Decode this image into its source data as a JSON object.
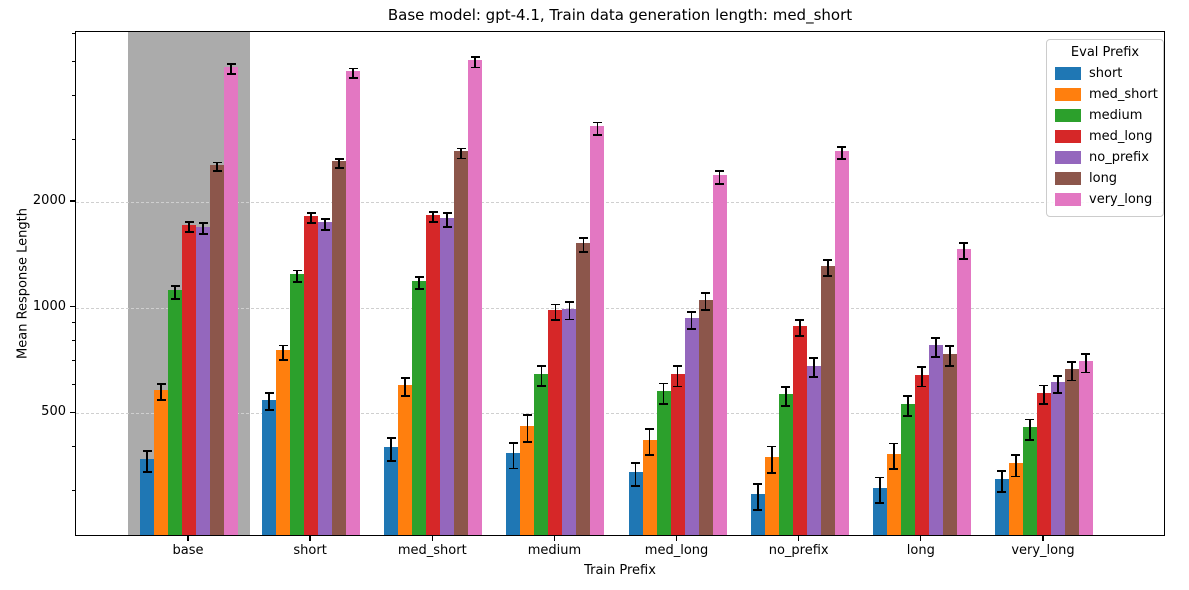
{
  "chart_data": {
    "type": "bar",
    "title": "Base model: gpt-4.1, Train data generation length: med_short",
    "xlabel": "Train Prefix",
    "ylabel": "Mean Response Length",
    "legend_title": "Eval Prefix",
    "y_scale": "log",
    "ylim": [
      222,
      6100
    ],
    "yticks": [
      500,
      1000,
      2000
    ],
    "ytick_labels": [
      "500",
      "1000",
      "2000"
    ],
    "minor_yticks": [
      300,
      400,
      600,
      700,
      800,
      900,
      3000,
      4000,
      5000,
      6000
    ],
    "grid": "dashed horizontal at major ticks",
    "legend_position": "upper right",
    "categories": [
      "base",
      "short",
      "med_short",
      "medium",
      "med_long",
      "no_prefix",
      "long",
      "very_long"
    ],
    "highlighted_category": "base",
    "highlight_color": "#ababab",
    "error_bar_color": "#000000",
    "series": [
      {
        "name": "short",
        "color": "#1f77b4",
        "values": [
          365,
          540,
          395,
          380,
          335,
          290,
          303,
          320
        ],
        "errors": [
          25,
          30,
          30,
          32,
          25,
          25,
          25,
          22
        ]
      },
      {
        "name": "med_short",
        "color": "#ff7f0e",
        "values": [
          575,
          745,
          595,
          455,
          415,
          370,
          378,
          355
        ],
        "errors": [
          30,
          35,
          35,
          40,
          35,
          32,
          32,
          25
        ]
      },
      {
        "name": "medium",
        "color": "#2ca02c",
        "values": [
          1105,
          1230,
          1175,
          640,
          570,
          560,
          525,
          450
        ],
        "errors": [
          45,
          45,
          45,
          42,
          38,
          35,
          35,
          30
        ]
      },
      {
        "name": "med_long",
        "color": "#d62728",
        "values": [
          1700,
          1800,
          1810,
          970,
          638,
          875,
          636,
          565
        ],
        "errors": [
          55,
          60,
          60,
          50,
          42,
          45,
          40,
          35
        ]
      },
      {
        "name": "no_prefix",
        "color": "#9467bd",
        "values": [
          1680,
          1730,
          1780,
          980,
          920,
          675,
          770,
          605
        ],
        "errors": [
          60,
          62,
          80,
          55,
          50,
          42,
          48,
          35
        ]
      },
      {
        "name": "long",
        "color": "#8c564b",
        "values": [
          2520,
          2580,
          2750,
          1510,
          1040,
          1300,
          730,
          660
        ],
        "errors": [
          70,
          75,
          90,
          72,
          58,
          70,
          48,
          40
        ]
      },
      {
        "name": "very_long",
        "color": "#e377c2",
        "values": [
          4780,
          4650,
          5000,
          3240,
          2350,
          2760,
          1450,
          695
        ],
        "errors": [
          160,
          150,
          170,
          130,
          95,
          115,
          75,
          42
        ]
      }
    ]
  }
}
